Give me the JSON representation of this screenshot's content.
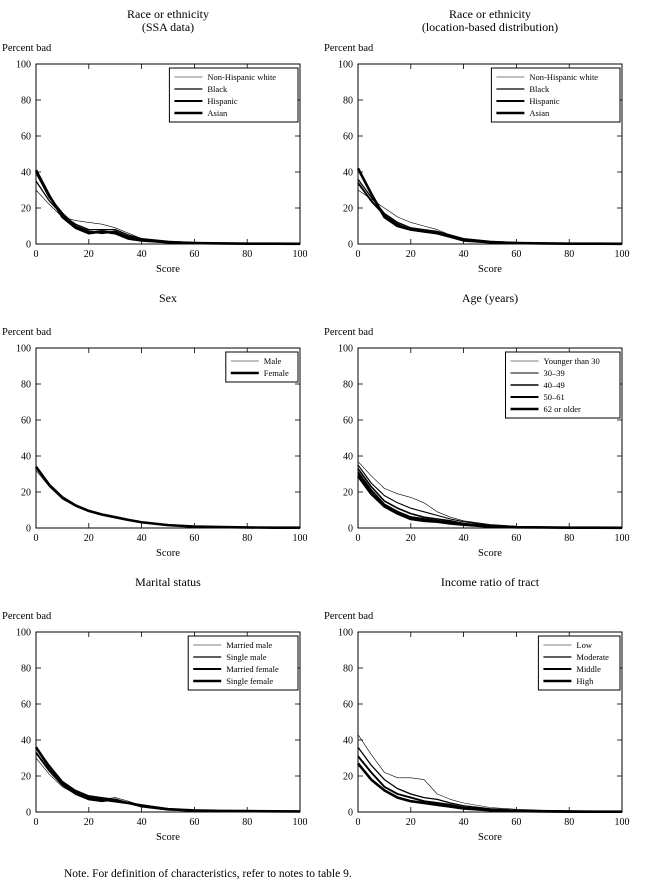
{
  "page": {
    "note": "Note. For definition of characteristics, refer to notes to table 9."
  },
  "colors": {
    "line": "#000000",
    "frame": "#000000",
    "background": "#ffffff"
  },
  "chart_data": [
    {
      "type": "line",
      "title": "Race or ethnicity",
      "subtitle": "(SSA data)",
      "xlabel": "Score",
      "ylabel": "Percent bad",
      "xlim": [
        0,
        100
      ],
      "ylim": [
        0,
        100
      ],
      "x_ticks": [
        0,
        20,
        40,
        60,
        80,
        100
      ],
      "y_ticks": [
        0,
        20,
        40,
        60,
        80,
        100
      ],
      "legend_position": "upper right",
      "x": [
        0,
        5,
        10,
        15,
        20,
        25,
        30,
        35,
        40,
        50,
        60,
        70,
        80,
        90,
        100
      ],
      "series": [
        {
          "name": "Non-Hispanic white",
          "values": [
            30,
            22,
            15,
            13,
            12,
            11,
            9,
            6,
            3,
            1,
            0.5,
            0.3,
            0.3,
            0.5,
            0.3
          ]
        },
        {
          "name": "Black",
          "values": [
            35,
            24,
            16,
            11,
            8,
            8,
            8,
            5,
            3,
            1.5,
            0.7,
            0.4,
            0.3,
            0.3,
            0.2
          ]
        },
        {
          "name": "Hispanic",
          "values": [
            40,
            26,
            17,
            10,
            7,
            6,
            7,
            4,
            2.5,
            1.2,
            0.6,
            0.4,
            0.3,
            0.2,
            0.2
          ]
        },
        {
          "name": "Asian",
          "values": [
            41,
            27,
            15,
            9,
            6,
            7,
            6,
            3,
            2,
            1,
            0.5,
            0.3,
            0.2,
            0.2,
            0.1
          ]
        }
      ]
    },
    {
      "type": "line",
      "title": "Race or ethnicity",
      "subtitle": "(location-based distribution)",
      "xlabel": "Score",
      "ylabel": "Percent bad",
      "xlim": [
        0,
        100
      ],
      "ylim": [
        0,
        100
      ],
      "x_ticks": [
        0,
        20,
        40,
        60,
        80,
        100
      ],
      "y_ticks": [
        0,
        20,
        40,
        60,
        80,
        100
      ],
      "legend_position": "upper right",
      "x": [
        0,
        5,
        10,
        15,
        20,
        25,
        30,
        35,
        40,
        50,
        60,
        70,
        80,
        90,
        100
      ],
      "series": [
        {
          "name": "Non-Hispanic white",
          "values": [
            30,
            25,
            20,
            15,
            12,
            10,
            8,
            5,
            3,
            1.2,
            0.6,
            0.4,
            0.3,
            0.3,
            0.2
          ]
        },
        {
          "name": "Black",
          "values": [
            36,
            26,
            17,
            12,
            9,
            8,
            7,
            5,
            3,
            1.5,
            0.8,
            0.5,
            0.4,
            0.3,
            0.2
          ]
        },
        {
          "name": "Hispanic",
          "values": [
            34,
            24,
            16,
            11,
            8,
            7,
            6,
            4,
            2.5,
            1.2,
            0.6,
            0.4,
            0.3,
            0.2,
            0.2
          ]
        },
        {
          "name": "Asian",
          "values": [
            42,
            28,
            15,
            10,
            8,
            7,
            6,
            4,
            2,
            1,
            0.5,
            0.3,
            0.2,
            0.2,
            0.1
          ]
        }
      ]
    },
    {
      "type": "line",
      "title": "Sex",
      "subtitle": "",
      "xlabel": "Score",
      "ylabel": "Percent bad",
      "xlim": [
        0,
        100
      ],
      "ylim": [
        0,
        100
      ],
      "x_ticks": [
        0,
        20,
        40,
        60,
        80,
        100
      ],
      "y_ticks": [
        0,
        20,
        40,
        60,
        80,
        100
      ],
      "legend_position": "upper right",
      "x": [
        0,
        5,
        10,
        15,
        20,
        25,
        30,
        35,
        40,
        50,
        60,
        70,
        80,
        90,
        100
      ],
      "series": [
        {
          "name": "Male",
          "values": [
            32,
            23,
            16,
            12,
            9,
            7,
            5.5,
            4,
            3,
            1.5,
            0.7,
            0.4,
            0.3,
            0.2,
            0.2
          ]
        },
        {
          "name": "Female",
          "values": [
            34,
            24,
            17,
            12.5,
            9.5,
            7.5,
            6,
            4.5,
            3.2,
            1.6,
            0.8,
            0.5,
            0.3,
            0.2,
            0.2
          ]
        }
      ]
    },
    {
      "type": "line",
      "title": "Age (years)",
      "subtitle": "",
      "xlabel": "Score",
      "ylabel": "Percent bad",
      "xlim": [
        0,
        100
      ],
      "ylim": [
        0,
        100
      ],
      "x_ticks": [
        0,
        20,
        40,
        60,
        80,
        100
      ],
      "y_ticks": [
        0,
        20,
        40,
        60,
        80,
        100
      ],
      "legend_position": "upper right",
      "x": [
        0,
        5,
        10,
        15,
        20,
        25,
        30,
        35,
        40,
        50,
        60,
        70,
        80,
        90,
        100
      ],
      "series": [
        {
          "name": "Younger than 30",
          "values": [
            37,
            29,
            22,
            19,
            17,
            14,
            9,
            6,
            4,
            2,
            1,
            0.6,
            0.4,
            0.3,
            0.2
          ]
        },
        {
          "name": "30–39",
          "values": [
            35,
            25,
            18,
            14,
            11,
            9,
            7,
            5,
            3.5,
            1.6,
            0.8,
            0.5,
            0.3,
            0.2,
            0.2
          ]
        },
        {
          "name": "40–49",
          "values": [
            33,
            23,
            15,
            11,
            8,
            6,
            5,
            4,
            2.5,
            1.2,
            0.6,
            0.4,
            0.3,
            0.2,
            0.2
          ]
        },
        {
          "name": "50–61",
          "values": [
            31,
            21,
            13,
            9,
            6,
            5,
            4,
            3,
            2,
            1,
            0.5,
            0.3,
            0.2,
            0.2,
            0.1
          ]
        },
        {
          "name": "62 or older",
          "values": [
            29,
            19,
            12,
            8,
            5,
            4,
            3.5,
            2.5,
            1.8,
            0.8,
            0.4,
            0.3,
            0.2,
            0.2,
            0.1
          ]
        }
      ]
    },
    {
      "type": "line",
      "title": "Marital status",
      "subtitle": "",
      "xlabel": "Score",
      "ylabel": "Percent bad",
      "xlim": [
        0,
        100
      ],
      "ylim": [
        0,
        100
      ],
      "x_ticks": [
        0,
        20,
        40,
        60,
        80,
        100
      ],
      "y_ticks": [
        0,
        20,
        40,
        60,
        80,
        100
      ],
      "legend_position": "upper right",
      "x": [
        0,
        5,
        10,
        15,
        20,
        25,
        30,
        35,
        40,
        50,
        60,
        70,
        80,
        90,
        100
      ],
      "series": [
        {
          "name": "Married male",
          "values": [
            30,
            21,
            14,
            10,
            8,
            7,
            8,
            6,
            3.5,
            1.2,
            0.7,
            0.5,
            0.4,
            0.3,
            0.3
          ]
        },
        {
          "name": "Single male",
          "values": [
            36,
            26,
            17,
            12,
            9,
            8,
            7,
            5,
            4,
            1.8,
            1,
            0.6,
            0.5,
            0.4,
            0.3
          ]
        },
        {
          "name": "Married female",
          "values": [
            33,
            23,
            15,
            10,
            7,
            6,
            7,
            5,
            3,
            1.3,
            0.7,
            0.5,
            0.4,
            0.3,
            0.3
          ]
        },
        {
          "name": "Single female",
          "values": [
            36,
            25,
            16,
            11,
            8,
            7,
            6,
            5,
            3.5,
            1.6,
            0.9,
            0.6,
            0.5,
            0.4,
            0.3
          ]
        }
      ]
    },
    {
      "type": "line",
      "title": "Income ratio of tract",
      "subtitle": "",
      "xlabel": "Score",
      "ylabel": "Percent bad",
      "xlim": [
        0,
        100
      ],
      "ylim": [
        0,
        100
      ],
      "x_ticks": [
        0,
        20,
        40,
        60,
        80,
        100
      ],
      "y_ticks": [
        0,
        20,
        40,
        60,
        80,
        100
      ],
      "legend_position": "upper right",
      "x": [
        0,
        5,
        10,
        15,
        20,
        25,
        30,
        35,
        40,
        50,
        60,
        70,
        80,
        90,
        100
      ],
      "series": [
        {
          "name": "Low",
          "values": [
            43,
            32,
            22,
            19,
            19,
            18,
            10,
            7,
            5,
            2.5,
            1.5,
            1,
            0.8,
            0.6,
            0.5
          ]
        },
        {
          "name": "Moderate",
          "values": [
            36,
            26,
            18,
            13,
            10,
            8,
            7,
            5,
            3.5,
            1.8,
            1,
            0.6,
            0.5,
            0.4,
            0.3
          ]
        },
        {
          "name": "Middle",
          "values": [
            31,
            22,
            14,
            10,
            8,
            6,
            5,
            4,
            2.5,
            1.3,
            0.7,
            0.5,
            0.4,
            0.3,
            0.2
          ]
        },
        {
          "name": "High",
          "values": [
            27,
            18,
            12,
            8,
            6,
            5,
            4,
            3,
            2,
            1,
            0.5,
            0.3,
            0.2,
            0.2,
            0.2
          ]
        }
      ]
    }
  ]
}
